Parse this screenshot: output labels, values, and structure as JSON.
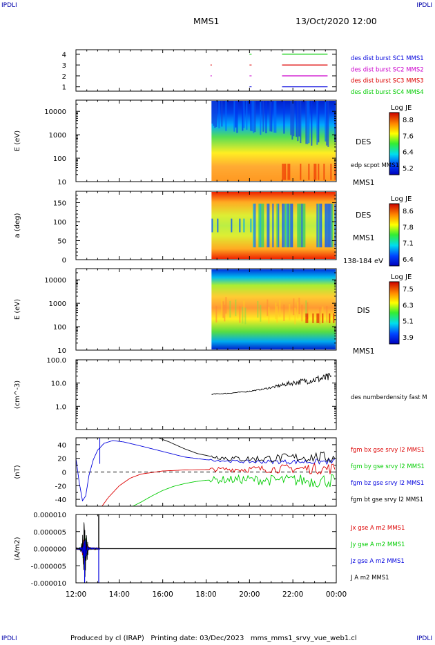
{
  "header": {
    "corner_tl": "IPDLI",
    "corner_tr": "IPDLI",
    "corner_bl": "IPDLI",
    "corner_br": "IPDLI",
    "title": "MMS1",
    "datetime": "13/Oct/2020 12:00"
  },
  "footer": {
    "text": "Produced by cl (IRAP)   Printing date: 03/Dec/2023   mms_mms1_srvy_vue_web1.cl"
  },
  "colors": {
    "blue": "#0000dd",
    "magenta": "#cc00cc",
    "red": "#dd0000",
    "green": "#00cc00",
    "black": "#000000"
  },
  "time_axis": {
    "tick_labels": [
      "12:00",
      "14:00",
      "16:00",
      "18:00",
      "20:00",
      "22:00",
      "00:00"
    ],
    "hours": [
      12,
      14,
      16,
      18,
      20,
      22,
      24
    ],
    "range": [
      12,
      24
    ]
  },
  "chart_data": [
    {
      "type": "line",
      "panel": "availability",
      "yticks": [
        "1",
        "2",
        "3",
        "4"
      ],
      "ylim": [
        0.6,
        4.4
      ],
      "legend": [
        {
          "label": "des dist burst SC1 MMS1",
          "color": "#0000dd"
        },
        {
          "label": "des dist burst SC2 MMS2",
          "color": "#cc00cc"
        },
        {
          "label": "des dist burst SC3 MMS3",
          "color": "#dd0000"
        },
        {
          "label": "des dist burst SC4 MMS4",
          "color": "#00cc00"
        }
      ],
      "series": [
        {
          "level": 4,
          "color": "#00cc00",
          "marks": [
            [
              20.0,
              20.05
            ]
          ],
          "bar": [
            21.5,
            23.6
          ]
        },
        {
          "level": 3,
          "color": "#dd0000",
          "marks": [
            [
              18.2,
              18.22
            ],
            [
              20.0,
              20.05
            ]
          ],
          "bar": [
            21.5,
            23.6
          ]
        },
        {
          "level": 2,
          "color": "#cc00cc",
          "marks": [
            [
              18.2,
              18.22
            ],
            [
              20.0,
              20.05
            ]
          ],
          "bar": [
            21.5,
            23.6
          ]
        },
        {
          "level": 1,
          "color": "#0000dd",
          "marks": [
            [
              20.0,
              20.05
            ]
          ],
          "bar": [
            21.5,
            23.6
          ]
        }
      ]
    },
    {
      "type": "heatmap",
      "panel": "des-energy",
      "ylabel": "E (eV)",
      "scale": "log",
      "yticks": [
        "10",
        "100",
        "1000",
        "10000"
      ],
      "ylim": [
        10,
        30000
      ],
      "data_start_hour": 18.25,
      "side_labels": [
        "DES",
        "edp scpot MMS1"
      ],
      "below_label": "MMS1",
      "colorbar": {
        "title": "Log JE",
        "ticks": [
          "8.8",
          "7.6",
          "6.4",
          "5.2"
        ],
        "range": [
          5.2,
          8.8
        ]
      }
    },
    {
      "type": "heatmap",
      "panel": "des-pitch",
      "ylabel": "a (deg)",
      "yticks": [
        "0",
        "50",
        "100",
        "150"
      ],
      "ylim": [
        0,
        180
      ],
      "data_start_hour": 18.25,
      "side_labels": [
        "DES",
        "MMS1"
      ],
      "below_label": "138-184 eV",
      "colorbar": {
        "title": "Log JE",
        "ticks": [
          "8.6",
          "7.8",
          "7.1",
          "6.4"
        ],
        "range": [
          6.4,
          8.6
        ]
      }
    },
    {
      "type": "heatmap",
      "panel": "dis-energy",
      "ylabel": "E (eV)",
      "scale": "log",
      "yticks": [
        "10",
        "100",
        "1000",
        "10000"
      ],
      "ylim": [
        10,
        30000
      ],
      "data_start_hour": 18.25,
      "side_labels": [
        "DIS"
      ],
      "below_label": "MMS1",
      "colorbar": {
        "title": "Log JE",
        "ticks": [
          "7.5",
          "6.3",
          "5.1",
          "3.9"
        ],
        "range": [
          3.9,
          7.5
        ]
      }
    },
    {
      "type": "line",
      "panel": "density",
      "ylabel": "(cm^-3)",
      "scale": "log",
      "yticks": [
        "1.0",
        "10.0",
        "100.0"
      ],
      "ylim": [
        0.1,
        100
      ],
      "series": [
        {
          "name": "des numberdensity fast M",
          "color": "#000000",
          "points": [
            [
              18.25,
              3.3
            ],
            [
              19,
              3.6
            ],
            [
              19.8,
              4.2
            ],
            [
              20.5,
              5.2
            ],
            [
              21.2,
              7
            ],
            [
              21.8,
              9.5
            ],
            [
              22.5,
              12
            ],
            [
              23.2,
              15
            ],
            [
              23.8,
              18
            ]
          ]
        }
      ]
    },
    {
      "type": "line",
      "panel": "magnetic-field",
      "ylabel": "(nT)",
      "yticks": [
        "40",
        "20",
        "0",
        "-20",
        "-40"
      ],
      "ylim": [
        -50,
        50
      ],
      "zero_line": true,
      "series": [
        {
          "name": "fgm bx gse srvy l2 MMS1",
          "color": "#dd0000",
          "points": [
            [
              13.2,
              -50
            ],
            [
              13.5,
              -37
            ],
            [
              14.0,
              -20
            ],
            [
              14.5,
              -9
            ],
            [
              15.0,
              -3
            ],
            [
              16,
              1.5
            ],
            [
              17,
              3
            ],
            [
              18,
              3.5
            ],
            [
              19,
              4
            ],
            [
              20,
              4
            ],
            [
              21,
              4.5
            ],
            [
              22,
              5
            ],
            [
              23,
              5
            ],
            [
              24,
              5
            ]
          ]
        },
        {
          "name": "fgm by gse srvy l2 MMS1",
          "color": "#00cc00",
          "points": [
            [
              14.5,
              -52
            ],
            [
              15,
              -44
            ],
            [
              15.5,
              -35
            ],
            [
              16,
              -27
            ],
            [
              16.5,
              -21
            ],
            [
              17,
              -17
            ],
            [
              17.5,
              -14
            ],
            [
              18,
              -12
            ],
            [
              19,
              -11
            ],
            [
              20,
              -11
            ],
            [
              21,
              -12
            ],
            [
              22,
              -12
            ],
            [
              23,
              -13
            ],
            [
              24,
              -12
            ]
          ]
        },
        {
          "name": "fgm bz gse srvy l2 MMS1",
          "color": "#0000dd",
          "points": [
            [
              12,
              20
            ],
            [
              12.15,
              -15
            ],
            [
              12.3,
              -42
            ],
            [
              12.45,
              -35
            ],
            [
              12.6,
              -5
            ],
            [
              12.8,
              18
            ],
            [
              13.0,
              32
            ],
            [
              13.3,
              42
            ],
            [
              13.7,
              46
            ],
            [
              14.2,
              44
            ],
            [
              15,
              38
            ],
            [
              16,
              30
            ],
            [
              17,
              22
            ],
            [
              18,
              18
            ],
            [
              19,
              16
            ],
            [
              20,
              15
            ],
            [
              21,
              15
            ],
            [
              22,
              15
            ],
            [
              23,
              15
            ],
            [
              24,
              15
            ]
          ]
        },
        {
          "name": "fgm bt gse srvy l2 MMS1",
          "color": "#000000",
          "points": [
            [
              15.8,
              50
            ],
            [
              16.3,
              44
            ],
            [
              17,
              34
            ],
            [
              17.6,
              27
            ],
            [
              18.2,
              23
            ],
            [
              19,
              20
            ],
            [
              20,
              19
            ],
            [
              21,
              20
            ],
            [
              22,
              21
            ],
            [
              23,
              22
            ],
            [
              24,
              20
            ]
          ]
        }
      ]
    },
    {
      "type": "line",
      "panel": "current-density",
      "ylabel": "(A/m2)",
      "yticks": [
        "0.000010",
        "0.000005",
        "0.000000",
        "-0.000005",
        "-0.000010"
      ],
      "ylim": [
        -1e-05,
        1e-05
      ],
      "series": [
        {
          "name": "Jx gse A m2 MMS1",
          "color": "#dd0000"
        },
        {
          "name": "Jy gse A m2 MMS1",
          "color": "#00cc00"
        },
        {
          "name": "Jz gse A m2 MMS1",
          "color": "#0000dd"
        },
        {
          "name": "J A m2 MMS1",
          "color": "#000000"
        }
      ]
    }
  ]
}
